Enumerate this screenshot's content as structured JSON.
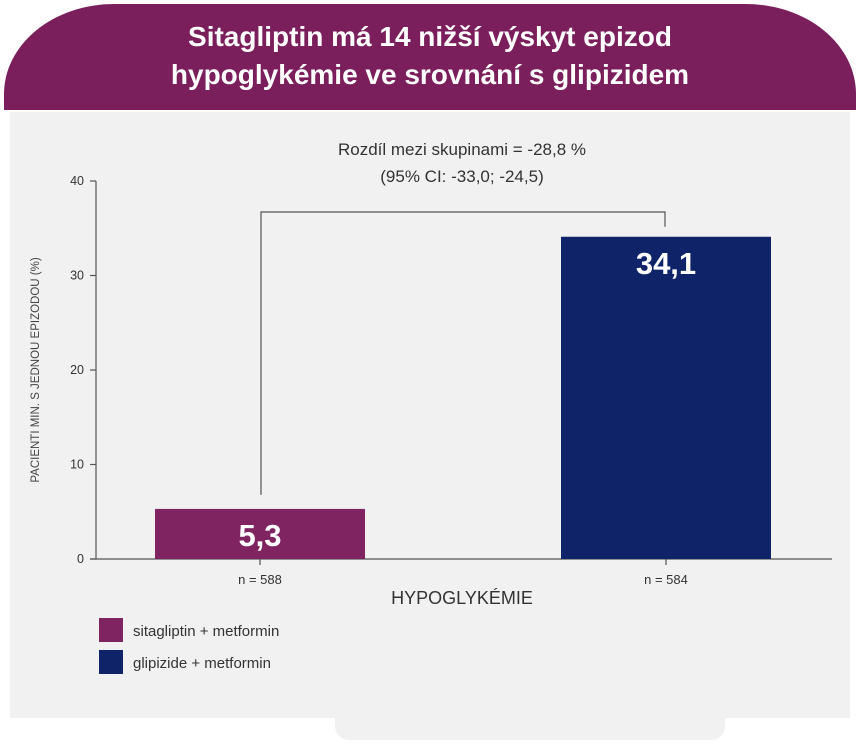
{
  "header": {
    "title_line1": "Sitagliptin má 14 nižší výskyt epizod",
    "title_line2": "hypoglykémie ve srovnání s glipizidem"
  },
  "annotation": {
    "line1": "Rozdíl mezi skupinami = -28,8 %",
    "line2": "(95% CI: -33,0; -24,5)"
  },
  "colors": {
    "banner": "#7a1f5c",
    "sitagliptin": "#7f2461",
    "glipizide": "#0f2468",
    "axis": "#555555"
  },
  "chart_data": {
    "type": "bar",
    "categories": [
      "sitagliptin + metformin",
      "glipizide + metformin"
    ],
    "values": [
      5.3,
      34.1
    ],
    "value_labels": [
      "5,3",
      "34,1"
    ],
    "n_labels": [
      "n = 588",
      "n = 584"
    ],
    "xlabel": "HYPOGLYKÉMIE",
    "ylabel": "PACIENTI MIN. S JEDNOU EPIZODOU (%)",
    "ylim": [
      0,
      40
    ],
    "yticks": [
      0,
      10,
      20,
      30,
      40
    ],
    "grid": false,
    "legend": {
      "placement": "bottom-left",
      "entries": [
        "sitagliptin + metformin",
        "glipizide + metformin"
      ]
    }
  }
}
